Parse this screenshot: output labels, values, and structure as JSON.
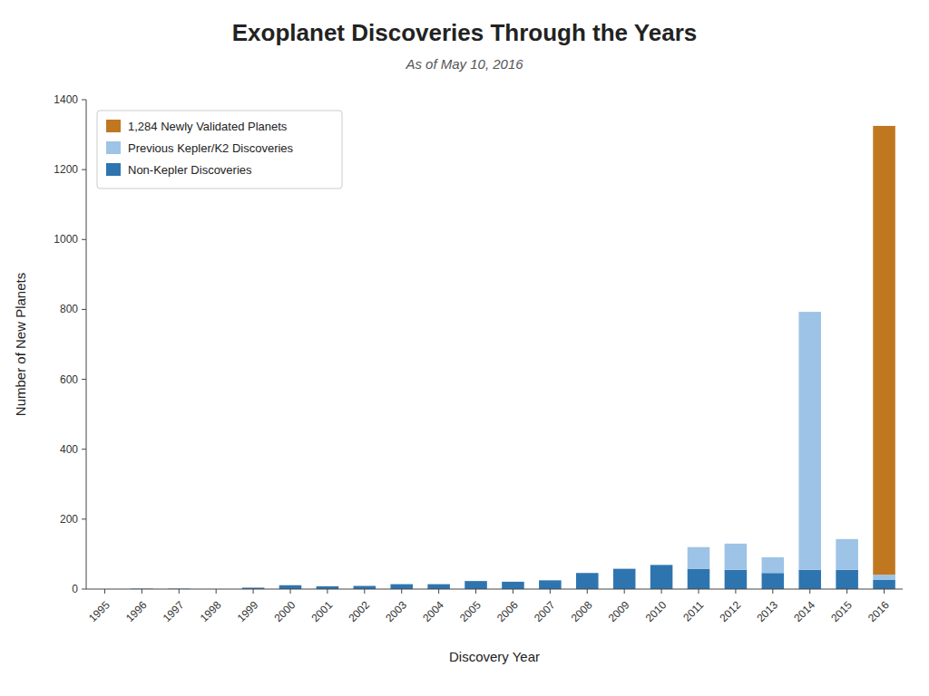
{
  "chart_data": {
    "type": "bar",
    "stacked": true,
    "title": "Exoplanet Discoveries Through the Years",
    "subtitle": "As of May 10, 2016",
    "xlabel": "Discovery Year",
    "ylabel": "Number of New Planets",
    "categories": [
      "1995",
      "1996",
      "1997",
      "1998",
      "1999",
      "2000",
      "2001",
      "2002",
      "2003",
      "2004",
      "2005",
      "2006",
      "2007",
      "2008",
      "2009",
      "2010",
      "2011",
      "2012",
      "2013",
      "2014",
      "2015",
      "2016"
    ],
    "series": [
      {
        "name": "Non-Kepler Discoveries",
        "color": "#2e75b0",
        "values": [
          0,
          1,
          1,
          0,
          4,
          11,
          8,
          9,
          14,
          14,
          23,
          21,
          25,
          46,
          58,
          69,
          58,
          55,
          46,
          55,
          55,
          26
        ]
      },
      {
        "name": "Previous Kepler/K2 Discoveries",
        "color": "#9dc3e6",
        "values": [
          0,
          0,
          0,
          0,
          0,
          0,
          0,
          0,
          0,
          0,
          0,
          0,
          0,
          0,
          0,
          0,
          62,
          75,
          45,
          738,
          88,
          15
        ]
      },
      {
        "name": "1,284 Newly Validated Planets",
        "color": "#c07820",
        "values": [
          0,
          0,
          0,
          0,
          0,
          0,
          0,
          0,
          0,
          0,
          0,
          0,
          0,
          0,
          0,
          0,
          0,
          0,
          0,
          0,
          0,
          1284
        ]
      }
    ],
    "ylim": [
      0,
      1400
    ],
    "yticks": [
      0,
      200,
      400,
      600,
      800,
      1000,
      1200,
      1400
    ],
    "grid": false,
    "legend": "upper left"
  }
}
